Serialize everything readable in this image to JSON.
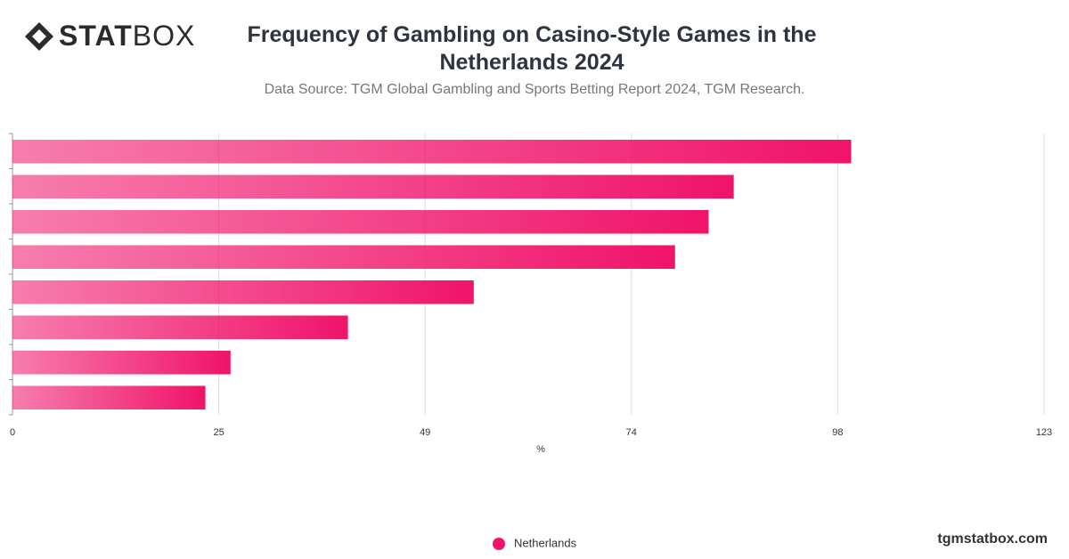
{
  "logo": {
    "bold": "STAT",
    "light": "BOX"
  },
  "footer": "tgmstatbox.com",
  "chart_data": {
    "type": "hbar",
    "title": "Frequency of Gambling on Casino-Style Games in the Netherlands 2024",
    "subtitle": "Data Source: TGM Global Gambling and Sports Betting Report 2024, TGM Research.",
    "categories": [
      null,
      null,
      null,
      null,
      null,
      null,
      null,
      null
    ],
    "series": [
      {
        "name": "Netherlands",
        "color": "#f0136a",
        "values": [
          100,
          86,
          83,
          79,
          55,
          40,
          26,
          23
        ]
      }
    ],
    "xlabel": "%",
    "xlim": [
      0,
      123
    ],
    "xticks": [
      0,
      {
        "value": 24.6,
        "label": "25"
      },
      {
        "value": 49.2,
        "label": "49"
      },
      {
        "value": 73.8,
        "label": "74"
      },
      {
        "value": 98.4,
        "label": "98"
      },
      123
    ],
    "grid": true
  }
}
